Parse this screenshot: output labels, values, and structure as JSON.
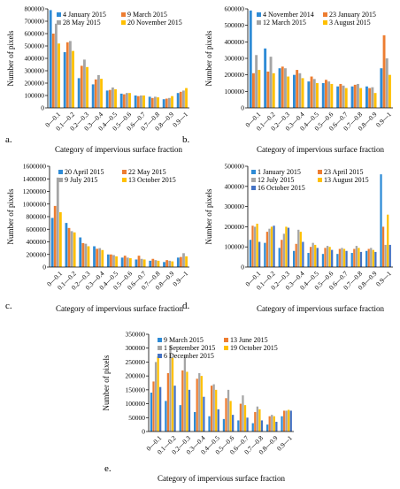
{
  "colors": [
    "#2e8bd6",
    "#ed7d31",
    "#a5a5a5",
    "#ffc000",
    "#4472c4"
  ],
  "chart_data": [
    {
      "type": "bar",
      "letter": "a.",
      "categories": [
        "0—0.1",
        "0.1—0.2",
        "0.2—0.3",
        "0.3—0.4",
        "0.4—0.5",
        "0.5—0.6",
        "0.6—0.7",
        "0.7—0.8",
        "0.8—0.9",
        "0.9—1"
      ],
      "yticks": [
        "0",
        "100000",
        "200000",
        "300000",
        "400000",
        "500000",
        "600000",
        "700000",
        "800000"
      ],
      "ylim": [
        0,
        800000
      ],
      "xlabel": "Category of impervious surface fraction",
      "ylabel": "Number of pixels",
      "legend_columns": 2,
      "legend_placement": "top-right",
      "series": [
        {
          "name": "4 January 2015",
          "values": [
            790000,
            450000,
            240000,
            190000,
            140000,
            115000,
            100000,
            90000,
            70000,
            120000
          ]
        },
        {
          "name": "9 March 2015",
          "values": [
            600000,
            530000,
            340000,
            230000,
            145000,
            110000,
            95000,
            80000,
            75000,
            130000
          ]
        },
        {
          "name": "28 May 2015",
          "values": [
            680000,
            540000,
            390000,
            265000,
            165000,
            120000,
            100000,
            90000,
            80000,
            140000
          ]
        },
        {
          "name": "20 November 2015",
          "values": [
            520000,
            460000,
            330000,
            235000,
            150000,
            120000,
            100000,
            85000,
            95000,
            160000
          ]
        }
      ]
    },
    {
      "type": "bar",
      "letter": "b.",
      "categories": [
        "0—0.1",
        "0.1—0.2",
        "0.2—0.3",
        "0.3—0.4",
        "0.4—0.5",
        "0.5—0.6",
        "0.6—0.7",
        "0.7—0.8",
        "0.8—0.9",
        "0.9—1"
      ],
      "yticks": [
        "0",
        "100000",
        "200000",
        "300000",
        "400000",
        "500000",
        "600000"
      ],
      "ylim": [
        0,
        600000
      ],
      "xlabel": "Category of impervious surface fraction",
      "ylabel": "Number of pixels",
      "legend_columns": 2,
      "legend_placement": "top-right",
      "series": [
        {
          "name": "4 November 2014",
          "values": [
            590000,
            360000,
            240000,
            200000,
            160000,
            150000,
            130000,
            130000,
            130000,
            240000
          ]
        },
        {
          "name": "23 January 2015",
          "values": [
            210000,
            220000,
            250000,
            230000,
            190000,
            170000,
            145000,
            140000,
            120000,
            440000
          ]
        },
        {
          "name": "12 March 2015",
          "values": [
            320000,
            310000,
            240000,
            210000,
            175000,
            160000,
            135000,
            145000,
            125000,
            300000
          ]
        },
        {
          "name": "3 August 2015",
          "values": [
            230000,
            210000,
            190000,
            180000,
            150000,
            145000,
            120000,
            120000,
            90000,
            200000
          ]
        }
      ]
    },
    {
      "type": "bar",
      "letter": "c.",
      "categories": [
        "0—0.1",
        "0.1—0.2",
        "0.2—0.3",
        "0.3—0.4",
        "0.4—0.5",
        "0.5—0.6",
        "0.6—0.7",
        "0.7—0.8",
        "0.8—0.9",
        "0.9—1"
      ],
      "yticks": [
        "0",
        "200000",
        "400000",
        "600000",
        "800000",
        "1000000",
        "1200000",
        "1400000",
        "1600000"
      ],
      "ylim": [
        0,
        1600000
      ],
      "xlabel": "Category of impervious surface fraction",
      "ylabel": "Number of pixels",
      "legend_columns": 2,
      "legend_placement": "top-right",
      "series": [
        {
          "name": "20 April 2015",
          "values": [
            780000,
            700000,
            470000,
            330000,
            200000,
            150000,
            120000,
            100000,
            80000,
            150000
          ]
        },
        {
          "name": "22 May 2015",
          "values": [
            970000,
            620000,
            380000,
            290000,
            200000,
            180000,
            180000,
            130000,
            110000,
            160000
          ]
        },
        {
          "name": "9 July 2015",
          "values": [
            1420000,
            570000,
            370000,
            300000,
            190000,
            150000,
            130000,
            110000,
            100000,
            220000
          ]
        },
        {
          "name": "13 October 2015",
          "values": [
            870000,
            550000,
            330000,
            270000,
            170000,
            140000,
            120000,
            100000,
            90000,
            170000
          ]
        }
      ]
    },
    {
      "type": "bar",
      "letter": "d.",
      "categories": [
        "0—0.1",
        "0.1—0.2",
        "0.2—0.3",
        "0.3—0.4",
        "0.4—0.5",
        "0.5—0.6",
        "0.6—0.7",
        "0.7—0.8",
        "0.8—0.9",
        "0.9—1"
      ],
      "yticks": [
        "0",
        "100000",
        "200000",
        "300000",
        "400000",
        "500000"
      ],
      "ylim": [
        0,
        500000
      ],
      "xlabel": "Category of impervious surface fraction",
      "ylabel": "Number of pixels",
      "legend_columns": 2,
      "legend_placement": "top-left",
      "series": [
        {
          "name": "1 January 2015",
          "values": [
            135000,
            120000,
            95000,
            80000,
            70000,
            65000,
            65000,
            70000,
            80000,
            460000
          ]
        },
        {
          "name": "23 April 2015",
          "values": [
            205000,
            175000,
            135000,
            115000,
            100000,
            95000,
            90000,
            90000,
            90000,
            200000
          ]
        },
        {
          "name": "12 July 2015",
          "values": [
            200000,
            190000,
            165000,
            185000,
            120000,
            105000,
            95000,
            105000,
            95000,
            110000
          ]
        },
        {
          "name": "13 August 2015",
          "values": [
            215000,
            200000,
            200000,
            175000,
            110000,
            100000,
            90000,
            95000,
            85000,
            260000
          ]
        },
        {
          "name": "16 October 2015",
          "values": [
            125000,
            205000,
            195000,
            125000,
            95000,
            85000,
            80000,
            75000,
            75000,
            110000
          ]
        }
      ]
    },
    {
      "type": "bar",
      "letter": "e.",
      "categories": [
        "0—0.1",
        "0.1—0.2",
        "0.2—0.3",
        "0.3—0.4",
        "0.4—0.5",
        "0.5—0.6",
        "0.6—0.7",
        "0.7—0.8",
        "0.8—0.9",
        "0.9—1"
      ],
      "yticks": [
        "0",
        "50000",
        "100000",
        "150000",
        "200000",
        "250000",
        "300000",
        "350000"
      ],
      "ylim": [
        0,
        350000
      ],
      "xlabel": "Category of impervious surface fraction",
      "ylabel": "Number of pixels",
      "legend_columns": 2,
      "legend_placement": "top-right",
      "series": [
        {
          "name": "9 March 2015",
          "values": [
            140000,
            110000,
            95000,
            70000,
            55000,
            45000,
            40000,
            30000,
            25000,
            55000
          ]
        },
        {
          "name": "13 June 2015",
          "values": [
            180000,
            210000,
            220000,
            190000,
            165000,
            120000,
            100000,
            70000,
            55000,
            75000
          ]
        },
        {
          "name": "1 September 2015",
          "values": [
            250000,
            310000,
            270000,
            210000,
            170000,
            150000,
            130000,
            90000,
            60000,
            75000
          ]
        },
        {
          "name": "19 October 2015",
          "values": [
            270000,
            265000,
            215000,
            200000,
            150000,
            110000,
            95000,
            80000,
            55000,
            78000
          ]
        },
        {
          "name": "6 December 2015",
          "values": [
            160000,
            165000,
            150000,
            125000,
            80000,
            60000,
            50000,
            40000,
            35000,
            75000
          ]
        }
      ]
    }
  ]
}
